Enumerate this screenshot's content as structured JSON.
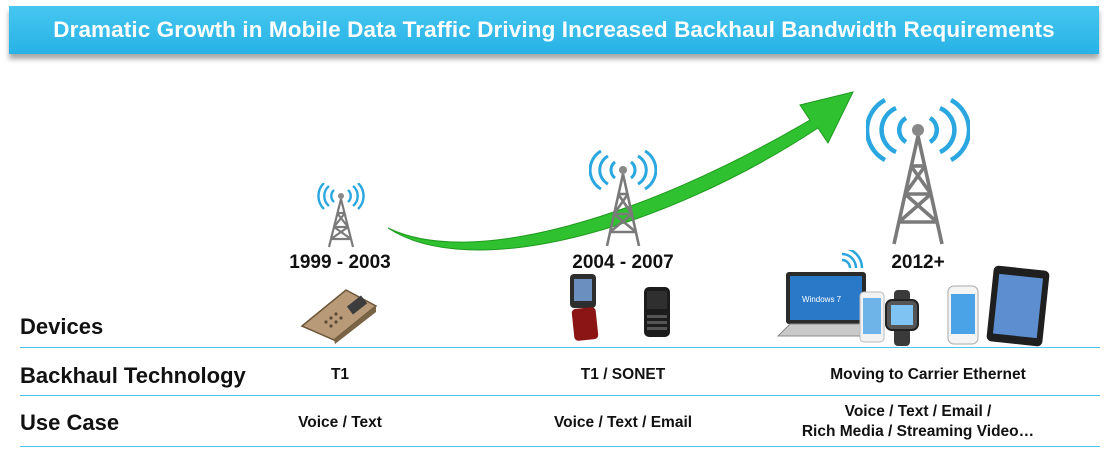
{
  "title": "Dramatic Growth in Mobile Data Traffic Driving Increased Backhaul Bandwidth Requirements",
  "eras": [
    {
      "label": "1999 - 2003",
      "backhaul": "T1",
      "use_case": "Voice / Text"
    },
    {
      "label": "2004 - 2007",
      "backhaul": "T1 / SONET",
      "use_case": "Voice / Text / Email"
    },
    {
      "label": "2012+",
      "backhaul": "Moving to Carrier Ethernet",
      "use_case_line1": "Voice / Text / Email /",
      "use_case_line2": "Rich Media / Streaming Video…"
    }
  ],
  "rows": {
    "devices": "Devices",
    "backhaul": "Backhaul Technology",
    "use_case": "Use Case"
  },
  "device_screen_text": "Windows 7",
  "colors": {
    "banner": "#2ab4e8",
    "arrow": "#2fc12f",
    "tower": "#8a8a8a",
    "signal": "#2aa6e0",
    "divider": "#4fc3ec"
  },
  "icons": [
    "cell-tower-icon",
    "signal-waves-icon",
    "growth-arrow-icon",
    "brick-phone-icon",
    "flip-phone-icon",
    "smartphone-icon",
    "laptop-icon",
    "smartwatch-icon",
    "tablet-icon"
  ]
}
